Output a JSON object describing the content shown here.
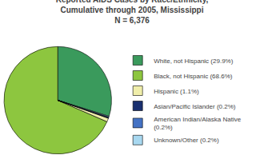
{
  "chart_data": {
    "type": "pie",
    "title": "Reported AIDS Cases by Race/Ethnicity,\nCumulative through 2005, Mississippi\nN = 6,376",
    "categories": [
      "White, not Hispanic (29.9%)",
      "Black, not Hispanic (68.6%)",
      "Hispanic (1.1%)",
      "Asian/Pacific Islander (0.2%)",
      "American Indian/Alaska Native\n(0.2%)",
      "Unknown/Other (0.2%)"
    ],
    "values": [
      29.9,
      68.6,
      1.1,
      0.2,
      0.2,
      0.2
    ],
    "colors": [
      "#3a9a5c",
      "#8dc63f",
      "#f0eeaa",
      "#1a3070",
      "#4472c4",
      "#a8d8f0"
    ],
    "legend": "right"
  }
}
